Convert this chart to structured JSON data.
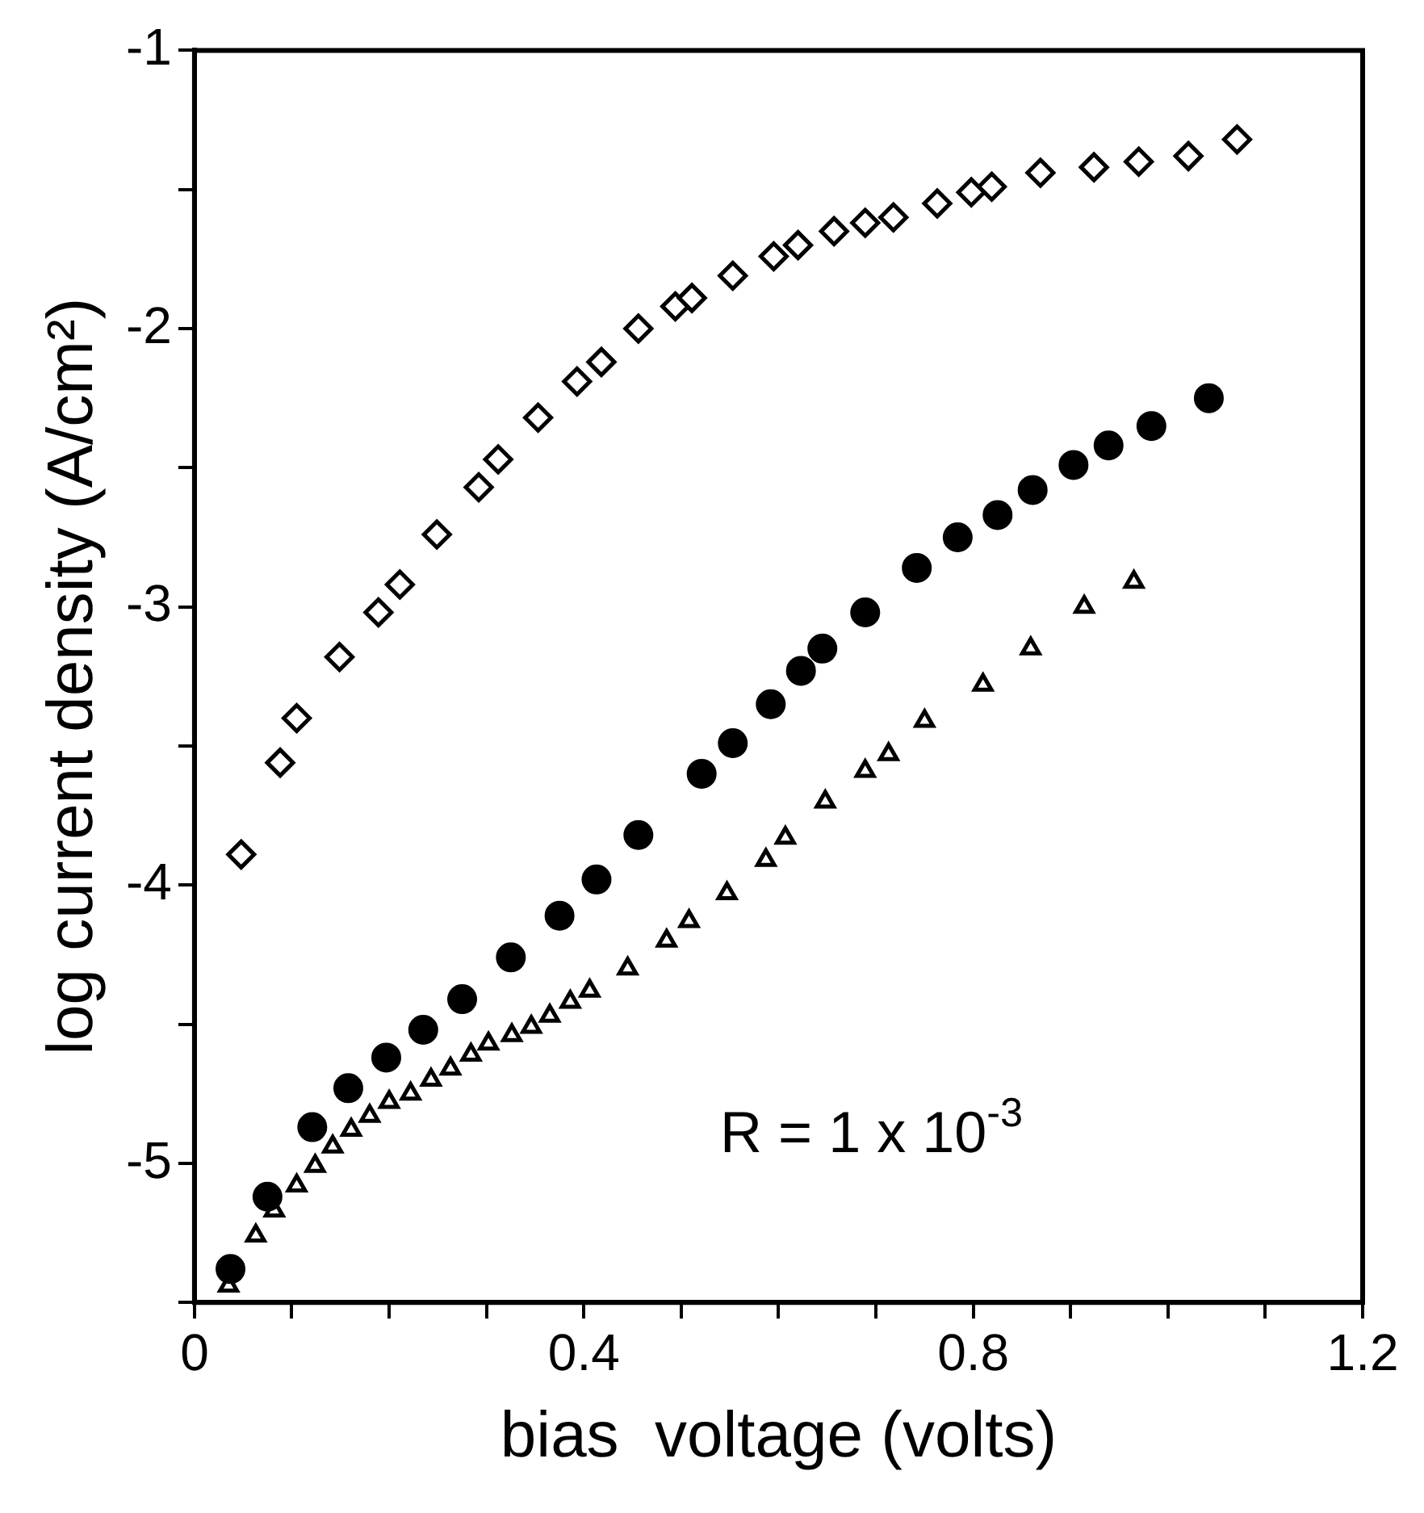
{
  "chart_data": {
    "type": "scatter",
    "xlabel": "bias  voltage (volts)",
    "ylabel": "log current density (A/cm²)",
    "xlim": [
      0,
      1.2
    ],
    "ylim": [
      -5.5,
      -1
    ],
    "xticks": [
      0,
      {
        "value": 0.1,
        "label": null
      },
      {
        "value": 0.2,
        "label": null
      },
      {
        "value": 0.3,
        "label": null
      },
      0.4,
      {
        "value": 0.5,
        "label": null
      },
      {
        "value": 0.6,
        "label": null
      },
      {
        "value": 0.7,
        "label": null
      },
      0.8,
      {
        "value": 0.9,
        "label": null
      },
      {
        "value": 1.0,
        "label": null
      },
      {
        "value": 1.1,
        "label": null
      },
      1.2
    ],
    "yticks": [
      -1,
      {
        "value": -1.5,
        "label": null
      },
      -2,
      {
        "value": -2.5,
        "label": null
      },
      -3,
      {
        "value": -3.5,
        "label": null
      },
      -4,
      {
        "value": -4.5,
        "label": null
      },
      -5,
      {
        "value": -5.5,
        "label": null
      }
    ],
    "grid": false,
    "legend": false,
    "annotations": [
      "R = 1 x 10$^{-3}$"
    ],
    "series": [
      {
        "color": "#000000",
        "marker": "diamond",
        "x": [
          0.048,
          0.088,
          0.105,
          0.149,
          0.189,
          0.211,
          0.249,
          0.292,
          0.312,
          0.353,
          0.393,
          0.418,
          0.456,
          0.494,
          0.511,
          0.553,
          0.595,
          0.62,
          0.657,
          0.689,
          0.718,
          0.763,
          0.798,
          0.819,
          0.869,
          0.924,
          0.97,
          1.021,
          1.071
        ],
        "values": [
          -3.89,
          -3.56,
          -3.4,
          -3.18,
          -3.02,
          -2.92,
          -2.74,
          -2.57,
          -2.47,
          -2.32,
          -2.19,
          -2.12,
          -2.0,
          -1.92,
          -1.89,
          -1.81,
          -1.74,
          -1.7,
          -1.65,
          -1.62,
          -1.6,
          -1.55,
          -1.51,
          -1.49,
          -1.44,
          -1.42,
          -1.4,
          -1.38,
          -1.32
        ]
      },
      {
        "color": "#000000",
        "marker": "circle",
        "x": [
          0.037,
          0.075,
          0.121,
          0.158,
          0.197,
          0.235,
          0.275,
          0.325,
          0.375,
          0.413,
          0.456,
          0.521,
          0.553,
          0.592,
          0.623,
          0.645,
          0.689,
          0.742,
          0.784,
          0.825,
          0.861,
          0.903,
          0.939,
          0.983,
          1.042
        ],
        "values": [
          -5.38,
          -5.12,
          -4.87,
          -4.73,
          -4.62,
          -4.52,
          -4.41,
          -4.26,
          -4.11,
          -3.98,
          -3.82,
          -3.6,
          -3.49,
          -3.35,
          -3.23,
          -3.15,
          -3.02,
          -2.86,
          -2.75,
          -2.67,
          -2.58,
          -2.49,
          -2.42,
          -2.35,
          -2.25
        ]
      },
      {
        "color": "#000000",
        "marker": "triangle",
        "x": [
          0.035,
          0.063,
          0.082,
          0.105,
          0.124,
          0.142,
          0.161,
          0.18,
          0.2,
          0.222,
          0.243,
          0.263,
          0.284,
          0.302,
          0.326,
          0.346,
          0.365,
          0.386,
          0.406,
          0.445,
          0.485,
          0.508,
          0.547,
          0.587,
          0.607,
          0.648,
          0.689,
          0.713,
          0.75,
          0.81,
          0.859,
          0.914,
          0.965
        ],
        "values": [
          -5.44,
          -5.26,
          -5.17,
          -5.08,
          -5.01,
          -4.94,
          -4.88,
          -4.83,
          -4.78,
          -4.75,
          -4.7,
          -4.66,
          -4.61,
          -4.57,
          -4.54,
          -4.51,
          -4.47,
          -4.42,
          -4.38,
          -4.3,
          -4.2,
          -4.13,
          -4.03,
          -3.91,
          -3.83,
          -3.7,
          -3.59,
          -3.53,
          -3.41,
          -3.28,
          -3.15,
          -3.0,
          -2.91
        ]
      }
    ]
  }
}
